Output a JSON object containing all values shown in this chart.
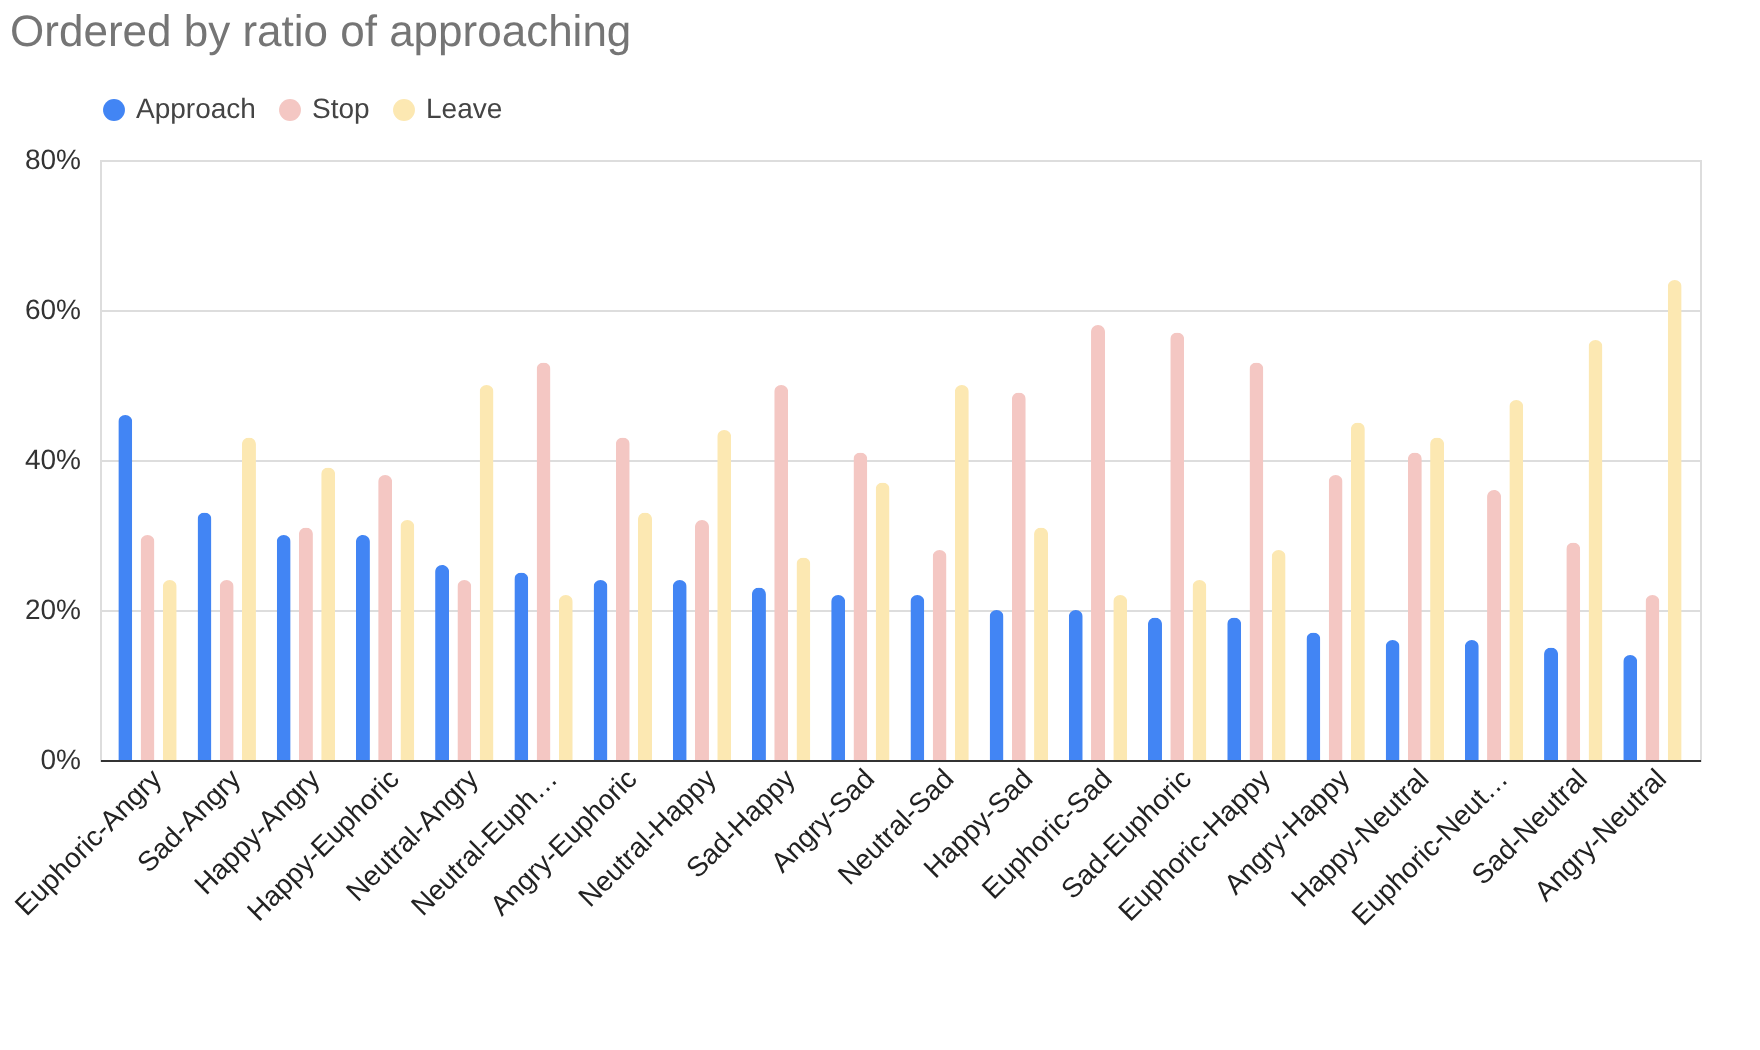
{
  "chart_data": {
    "type": "bar",
    "title": "Ordered by ratio of approaching",
    "categories": [
      "Euphoric-Angry",
      "Sad-Angry",
      "Happy-Angry",
      "Happy-Euphoric",
      "Neutral-Angry",
      "Neutral-Euph…",
      "Angry-Euphoric",
      "Neutral-Happy",
      "Sad-Happy",
      "Angry-Sad",
      "Neutral-Sad",
      "Happy-Sad",
      "Euphoric-Sad",
      "Sad-Euphoric",
      "Euphoric-Happy",
      "Angry-Happy",
      "Happy-Neutral",
      "Euphoric-Neut…",
      "Sad-Neutral",
      "Angry-Neutral"
    ],
    "series": [
      {
        "name": "Approach",
        "color": "#4285f4",
        "values": [
          46,
          33,
          30,
          30,
          26,
          25,
          24,
          24,
          23,
          22,
          22,
          20,
          20,
          19,
          19,
          17,
          16,
          16,
          15,
          14
        ]
      },
      {
        "name": "Stop",
        "color": "#f4c7c3",
        "values": [
          30,
          24,
          31,
          38,
          24,
          53,
          43,
          32,
          50,
          41,
          28,
          49,
          58,
          57,
          53,
          38,
          41,
          36,
          29,
          22
        ]
      },
      {
        "name": "Leave",
        "color": "#fce8b2",
        "values": [
          24,
          43,
          39,
          32,
          50,
          22,
          33,
          44,
          27,
          37,
          50,
          31,
          22,
          24,
          28,
          45,
          43,
          48,
          56,
          64
        ]
      }
    ],
    "ylim": [
      0,
      80
    ],
    "yticks": [
      {
        "value": 0,
        "label": "0%"
      },
      {
        "value": 20,
        "label": "20%"
      },
      {
        "value": 40,
        "label": "40%"
      },
      {
        "value": 60,
        "label": "60%"
      },
      {
        "value": 80,
        "label": "80%"
      }
    ],
    "grid": "y",
    "legend": "top"
  }
}
